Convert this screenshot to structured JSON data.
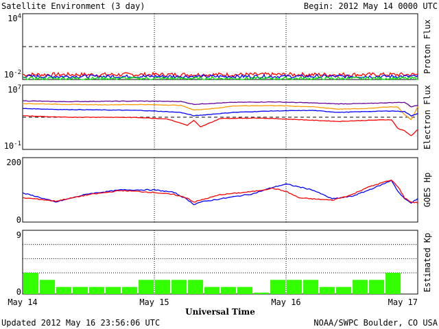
{
  "header": {
    "title": "Satellite Environment (3 day)",
    "begin": "Begin:  2012 May 14 0000 UTC"
  },
  "footer": {
    "updated": "Updated 2012 May 16 23:56:06 UTC",
    "credit": "NOAA/SWPC Boulder, CO USA"
  },
  "colors": {
    "red": "#ff0000",
    "blue": "#0000ff",
    "green": "#00e000",
    "orange": "#ff9900",
    "purple": "#660099",
    "kp_bar": "#33ff00"
  },
  "chart_data": [
    {
      "type": "line",
      "panel": "proton",
      "ylabel": "Proton Flux",
      "scale": "log",
      "ylim": [
        0.01,
        10000
      ],
      "yticks": [
        "10^4",
        "10^-2"
      ],
      "threshold": 10,
      "xlim_days": [
        0,
        3
      ],
      "series": [
        {
          "color": "red",
          "level": 0.028,
          "noise": 0.18
        },
        {
          "color": "blue",
          "level": 0.019,
          "noise": 0.15
        },
        {
          "color": "green",
          "level": 0.0125,
          "noise": 0.14
        }
      ]
    },
    {
      "type": "line",
      "panel": "electron",
      "ylabel": "Electron Flux",
      "scale": "log",
      "ylim": [
        0.1,
        10000000
      ],
      "yticks": [
        "10^7",
        "10^-1"
      ],
      "threshold": 1000,
      "xlim_days": [
        0,
        3
      ],
      "series": [
        {
          "color": "purple",
          "x": [
            0,
            0.3,
            0.6,
            0.9,
            1.2,
            1.3,
            1.6,
            1.9,
            2.2,
            2.4,
            2.6,
            2.8,
            2.9,
            2.95,
            3.0
          ],
          "y": [
            110000,
            85000,
            95000,
            100000,
            90000,
            40000,
            70000,
            80000,
            60000,
            45000,
            50000,
            65000,
            70000,
            20000,
            30000
          ]
        },
        {
          "color": "orange",
          "x": [
            0,
            0.3,
            0.6,
            0.9,
            1.2,
            1.3,
            1.45,
            1.6,
            1.9,
            2.2,
            2.4,
            2.6,
            2.8,
            2.85,
            2.9,
            2.95,
            3.0
          ],
          "y": [
            50000,
            40000,
            35000,
            38000,
            30000,
            8000,
            12000,
            25000,
            28000,
            20000,
            10000,
            12000,
            20000,
            18000,
            2000,
            500,
            20000
          ]
        },
        {
          "color": "blue",
          "x": [
            0,
            0.3,
            0.6,
            0.9,
            1.2,
            1.3,
            1.6,
            1.9,
            2.2,
            2.4,
            2.6,
            2.8,
            2.9,
            2.95,
            3.0
          ],
          "y": [
            12000,
            9000,
            8000,
            7000,
            4000,
            1500,
            4000,
            6000,
            7000,
            4000,
            5000,
            6000,
            5000,
            1500,
            3000
          ]
        },
        {
          "color": "red",
          "x": [
            0,
            0.3,
            0.6,
            0.9,
            1.1,
            1.25,
            1.3,
            1.35,
            1.5,
            1.8,
            2.1,
            2.4,
            2.6,
            2.8,
            2.85,
            2.9,
            2.95,
            3.0
          ],
          "y": [
            1500,
            1000,
            1000,
            900,
            600,
            100,
            400,
            60,
            700,
            800,
            500,
            300,
            400,
            500,
            40,
            20,
            5,
            30
          ]
        }
      ]
    },
    {
      "type": "line",
      "panel": "goes_hp",
      "ylabel": "GOES Hp",
      "scale": "linear",
      "ylim": [
        0,
        200
      ],
      "yticks": [
        "200",
        "0"
      ],
      "xlim_days": [
        0,
        3
      ],
      "series": [
        {
          "color": "blue",
          "x": [
            0,
            0.1,
            0.25,
            0.5,
            0.75,
            1.0,
            1.15,
            1.25,
            1.3,
            1.35,
            1.5,
            1.75,
            1.9,
            2.0,
            2.2,
            2.35,
            2.5,
            2.6,
            2.75,
            2.8,
            2.85,
            2.9,
            2.95,
            3.0
          ],
          "y": [
            90,
            80,
            62,
            88,
            100,
            100,
            92,
            70,
            55,
            62,
            72,
            88,
            108,
            118,
            100,
            72,
            80,
            95,
            120,
            130,
            95,
            72,
            60,
            72
          ]
        },
        {
          "color": "red",
          "x": [
            0,
            0.1,
            0.25,
            0.5,
            0.75,
            1.0,
            1.15,
            1.25,
            1.3,
            1.35,
            1.5,
            1.75,
            1.9,
            2.0,
            2.1,
            2.2,
            2.35,
            2.5,
            2.6,
            2.75,
            2.8,
            2.85,
            2.9,
            2.95,
            3.0
          ],
          "y": [
            75,
            72,
            65,
            85,
            98,
            92,
            85,
            75,
            62,
            68,
            85,
            95,
            105,
            95,
            75,
            72,
            68,
            85,
            105,
            125,
            130,
            110,
            75,
            62,
            60
          ]
        }
      ]
    },
    {
      "type": "bar",
      "panel": "kp",
      "ylabel": "Estimated Kp",
      "ylim": [
        0,
        9
      ],
      "yticks": [
        "9",
        "0"
      ],
      "values": [
        3,
        2,
        1,
        1,
        1,
        1,
        1,
        2,
        2,
        2,
        2,
        1,
        1,
        1,
        0.2,
        2,
        2,
        2,
        1,
        1,
        2,
        2,
        3,
        0
      ]
    }
  ],
  "xaxis": {
    "label": "Universal Time",
    "ticks": [
      "May 14",
      "May 15",
      "May 16",
      "May 17"
    ]
  }
}
